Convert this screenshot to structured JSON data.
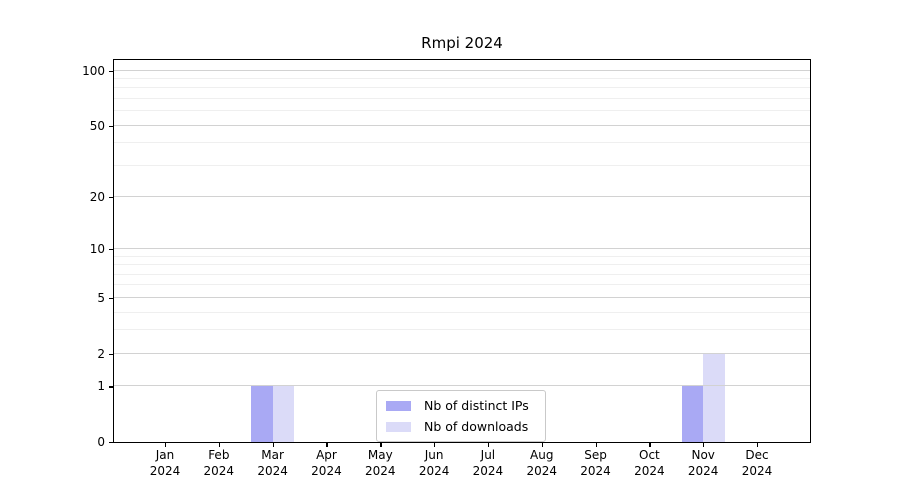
{
  "chart_data": {
    "type": "bar",
    "title": "Rmpi 2024",
    "categories": [
      "Jan 2024",
      "Feb 2024",
      "Mar 2024",
      "Apr 2024",
      "May 2024",
      "Jun 2024",
      "Jul 2024",
      "Aug 2024",
      "Sep 2024",
      "Oct 2024",
      "Nov 2024",
      "Dec 2024"
    ],
    "series": [
      {
        "name": "Nb of distinct IPs",
        "color": "#a9a9f4",
        "values": [
          0,
          0,
          1,
          0,
          0,
          0,
          0,
          0,
          0,
          0,
          1,
          0
        ]
      },
      {
        "name": "Nb of downloads",
        "color": "#dbdbf8",
        "values": [
          0,
          0,
          1,
          0,
          0,
          0,
          0,
          0,
          0,
          0,
          2,
          0
        ]
      }
    ],
    "xlabel": "",
    "ylabel": "",
    "yscale": "log1p",
    "ylim": [
      0,
      115
    ],
    "yticks": [
      0,
      1,
      2,
      5,
      10,
      20,
      50,
      100
    ],
    "minor_gridlines": [
      3,
      4,
      6,
      7,
      8,
      9,
      30,
      40,
      60,
      70,
      80,
      90
    ],
    "grid": true,
    "legend_position": "lower center",
    "colors": {
      "major_grid": "#d2d2d2",
      "minor_grid": "#efefef",
      "spine": "#000000",
      "background": "#ffffff"
    }
  }
}
